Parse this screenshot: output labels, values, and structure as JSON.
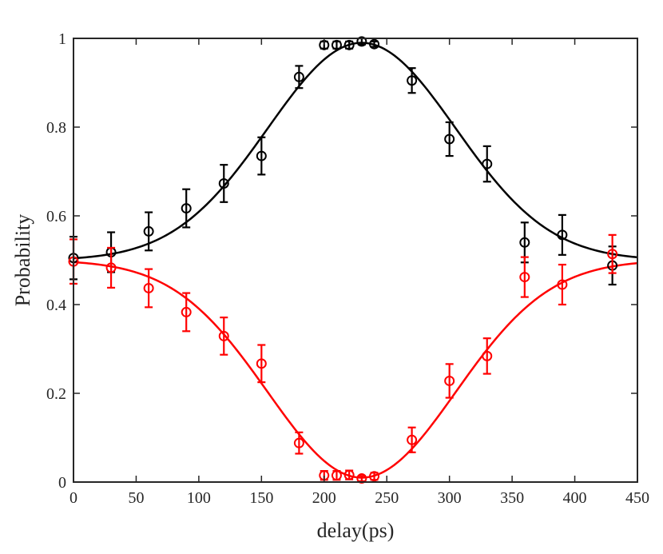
{
  "chart_data": {
    "type": "scatter",
    "title": "",
    "xlabel": "delay(ps)",
    "ylabel": "Probability",
    "xlim": [
      0,
      450
    ],
    "ylim": [
      0,
      1
    ],
    "x_ticks": [
      0,
      50,
      100,
      150,
      200,
      250,
      300,
      350,
      400,
      450
    ],
    "y_ticks": [
      0,
      0.2,
      0.4,
      0.6,
      0.8,
      1
    ],
    "x_tick_labels": [
      "0",
      "50",
      "100",
      "150",
      "200",
      "250",
      "300",
      "350",
      "400",
      "450"
    ],
    "y_tick_labels": [
      "0",
      "0.2",
      "0.4",
      "0.6",
      "0.8",
      "1"
    ],
    "grid": false,
    "series": [
      {
        "name": "black",
        "color": "#000000",
        "x": [
          0,
          30,
          60,
          90,
          120,
          150,
          180,
          200,
          210,
          220,
          230,
          240,
          270,
          300,
          330,
          360,
          390,
          430
        ],
        "y": [
          0.505,
          0.518,
          0.565,
          0.617,
          0.673,
          0.735,
          0.913,
          0.985,
          0.985,
          0.985,
          0.993,
          0.987,
          0.905,
          0.773,
          0.717,
          0.54,
          0.557,
          0.488
        ],
        "err": [
          0.048,
          0.045,
          0.043,
          0.043,
          0.042,
          0.042,
          0.025,
          0.008,
          0.008,
          0.008,
          0.007,
          0.006,
          0.028,
          0.038,
          0.04,
          0.045,
          0.045,
          0.043
        ],
        "fit": {
          "baseline": 0.5,
          "amplitude": 0.49,
          "center": 230,
          "sigma": 75
        }
      },
      {
        "name": "red",
        "color": "#ff0000",
        "x": [
          0,
          30,
          60,
          90,
          120,
          150,
          180,
          200,
          210,
          220,
          230,
          240,
          270,
          300,
          330,
          360,
          390,
          430
        ],
        "y": [
          0.497,
          0.483,
          0.437,
          0.383,
          0.329,
          0.267,
          0.088,
          0.015,
          0.015,
          0.016,
          0.008,
          0.013,
          0.095,
          0.228,
          0.284,
          0.462,
          0.445,
          0.514
        ],
        "err": [
          0.05,
          0.045,
          0.043,
          0.043,
          0.042,
          0.042,
          0.024,
          0.01,
          0.01,
          0.01,
          0.006,
          0.008,
          0.028,
          0.038,
          0.04,
          0.045,
          0.045,
          0.043
        ],
        "fit": {
          "baseline": 0.5,
          "amplitude": -0.49,
          "center": 230,
          "sigma": 75
        }
      }
    ]
  }
}
